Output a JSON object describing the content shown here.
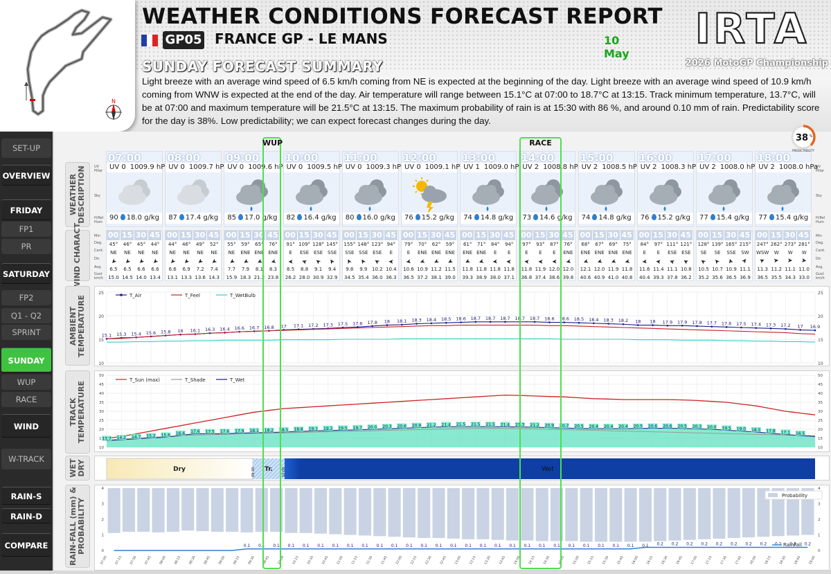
{
  "header": {
    "title": "WEATHER CONDITIONS FORECAST REPORT",
    "gp_code": "GP05",
    "gp_name": "FRANCE GP - LE MANS",
    "date": "10 May",
    "logo_text": "IRTA",
    "championship": "2026 MotoGP Championship",
    "summary_title": "SUNDAY FORECAST SUMMARY",
    "summary_text": "Light breeze with an average wind speed of 6.5 km/h coming from NE is expected at the beginning of the day. Light breeze with an average wind speed of 10.9 km/h coming from WNW is expected at the end of the day. Air temperature will range between 15.1°C at 07:00 to 18.7°C at 13:15. Track minimum temperature, 13.7°C, will be at 07:00 and maximum temperature will be 21.5°C at 13:15. The maximum probability of rain is at 15:30 with 86 %, and around 0.10 mm of rain. Predictability score for the day is 38%. Low predictability; we can expect forecast changes during the day.",
    "compass_label": "N"
  },
  "predictability": {
    "value": "38",
    "unit": "%",
    "label": "PREDICTABILITY",
    "fraction": 0.38
  },
  "sidebar": [
    {
      "label": "SET-UP",
      "kind": "sub"
    },
    {
      "label": "OVERVIEW",
      "kind": "main"
    },
    {
      "label": "FRIDAY",
      "kind": "main"
    },
    {
      "label": "FP1",
      "kind": "sub"
    },
    {
      "label": "PR",
      "kind": "sub"
    },
    {
      "label": "SATURDAY",
      "kind": "main"
    },
    {
      "label": "FP2",
      "kind": "sub"
    },
    {
      "label": "Q1 - Q2",
      "kind": "sub"
    },
    {
      "label": "SPRINT",
      "kind": "sub"
    },
    {
      "label": "SUNDAY",
      "kind": "active"
    },
    {
      "label": "WUP",
      "kind": "sub"
    },
    {
      "label": "RACE",
      "kind": "sub"
    },
    {
      "label": "WIND",
      "kind": "main"
    },
    {
      "label": "W-TRACK",
      "kind": "sub"
    },
    {
      "label": "RAIN-S",
      "kind": "main"
    },
    {
      "label": "RAIN-D",
      "kind": "main"
    },
    {
      "label": "COMPARE",
      "kind": "main"
    }
  ],
  "panels": {
    "weather": "WEATHER DESCRIPTION",
    "wind": "WIND CHARACT.",
    "ambient": "AMBIENT TEMPERATURE",
    "track": "TRACK TEMPERATURE",
    "wetdry": "WET DRY",
    "rain": "RAIN-FALL (mm) & PROBABILITY"
  },
  "row_labels": {
    "uv": "UV Pillar",
    "sky": "Sky",
    "hum": "H/Rel Hum",
    "min": "Min",
    "deg": "Deg.",
    "card": "Card.",
    "dir": "Dir.",
    "avg": "Avg.",
    "gust": "Gust km/h"
  },
  "sessions": [
    {
      "label": "WUP"
    },
    {
      "label": "RACE"
    }
  ],
  "hours": [
    {
      "time": "07:00",
      "uv": "UV 0",
      "pressure": "1009.9 hPa",
      "hum": "90",
      "abs": "18.0 g/kg",
      "icon": "cloud-icon"
    },
    {
      "time": "08:00",
      "uv": "UV 0",
      "pressure": "1009.7 hPa",
      "hum": "87",
      "abs": "17.4 g/kg",
      "icon": "cloud-icon"
    },
    {
      "time": "09:00",
      "uv": "UV 0",
      "pressure": "1009.6 hPa",
      "hum": "85",
      "abs": "17.0 g/kg",
      "icon": "rain-cloud-icon"
    },
    {
      "time": "10:00",
      "uv": "UV 0",
      "pressure": "1009.5 hPa",
      "hum": "82",
      "abs": "16.4 g/kg",
      "icon": "rain-cloud-icon"
    },
    {
      "time": "11:00",
      "uv": "UV 0",
      "pressure": "1009.3 hPa",
      "hum": "80",
      "abs": "16.0 g/kg",
      "icon": "rain-cloud-icon"
    },
    {
      "time": "12:00",
      "uv": "UV 0",
      "pressure": "1009.1 hPa",
      "hum": "76",
      "abs": "15.2 g/kg",
      "icon": "sun-storm-icon"
    },
    {
      "time": "13:00",
      "uv": "UV 1",
      "pressure": "1009.0 hPa",
      "hum": "74",
      "abs": "14.8 g/kg",
      "icon": "rain-cloud-icon"
    },
    {
      "time": "14:00",
      "uv": "UV 2",
      "pressure": "1008.8 hPa",
      "hum": "73",
      "abs": "14.6 g/kg",
      "icon": "rain-cloud-icon"
    },
    {
      "time": "15:00",
      "uv": "UV 2",
      "pressure": "1008.5 hPa",
      "hum": "74",
      "abs": "14.8 g/kg",
      "icon": "rain-cloud-icon"
    },
    {
      "time": "16:00",
      "uv": "UV 2",
      "pressure": "1008.3 hPa",
      "hum": "76",
      "abs": "15.2 g/kg",
      "icon": "rain-cloud-icon"
    },
    {
      "time": "17:00",
      "uv": "UV 2",
      "pressure": "1008.0 hPa",
      "hum": "77",
      "abs": "15.4 g/kg",
      "icon": "rain-cloud-icon"
    },
    {
      "time": "18:00",
      "uv": "UV 2",
      "pressure": "1008.0 hPa",
      "hum": "77",
      "abs": "15.4 g/kg",
      "icon": "rain-cloud-icon"
    }
  ],
  "wind_minutes": [
    "00",
    "15",
    "30",
    "45"
  ],
  "wind": {
    "deg": [
      "45°",
      "46°",
      "45°",
      "44°",
      "44°",
      "46°",
      "49°",
      "52°",
      "55°",
      "59°",
      "65°",
      "76°",
      "91°",
      "109°",
      "128°",
      "145°",
      "155°",
      "148°",
      "123°",
      "94°",
      "79°",
      "70°",
      "62°",
      "59°",
      "61°",
      "71°",
      "84°",
      "94°",
      "97°",
      "93°",
      "87°",
      "76°",
      "68°",
      "67°",
      "69°",
      "75°",
      "84°",
      "97°",
      "111°",
      "121°",
      "128°",
      "139°",
      "165°",
      "215°",
      "247°",
      "262°",
      "273°",
      "281°"
    ],
    "card": [
      "NE",
      "NE",
      "NE",
      "NE",
      "NE",
      "NE",
      "NE",
      "NE",
      "NE",
      "ENE",
      "ENE",
      "ENE",
      "E",
      "ESE",
      "ESE",
      "SSE",
      "SSE",
      "SSE",
      "ESE",
      "E",
      "E",
      "ENE",
      "ENE",
      "ENE",
      "ENE",
      "ENE",
      "E",
      "E",
      "E",
      "E",
      "E",
      "ENE",
      "ENE",
      "ENE",
      "ENE",
      "ENE",
      "E",
      "E",
      "ESE",
      "ESE",
      "SE",
      "SE",
      "SSE",
      "SW",
      "WSW",
      "W",
      "W",
      "W"
    ],
    "avg": [
      "6.5",
      "6.5",
      "6.6",
      "6.6",
      "6.6",
      "6.9",
      "7.2",
      "7.4",
      "7.7",
      "7.9",
      "8.1",
      "8.3",
      "8.5",
      "8.8",
      "9.1",
      "9.4",
      "9.8",
      "9.9",
      "10.2",
      "10.4",
      "10.6",
      "10.9",
      "11.2",
      "11.5",
      "11.8",
      "11.8",
      "11.8",
      "11.8",
      "11.8",
      "11.9",
      "12.0",
      "12.0",
      "12.1",
      "12.0",
      "11.9",
      "11.8",
      "11.6",
      "11.4",
      "11.1",
      "10.8",
      "10.5",
      "10.7",
      "10.9",
      "11.1",
      "11.3",
      "11.2",
      "11.1",
      "11.0"
    ],
    "gust": [
      "15.0",
      "14.5",
      "14.0",
      "13.4",
      "13.1",
      "13.3",
      "13.6",
      "14.3",
      "15.9",
      "18.3",
      "21.2",
      "23.8",
      "26.2",
      "28.0",
      "30.9",
      "32.9",
      "34.5",
      "35.4",
      "36.0",
      "36.3",
      "36.5",
      "37.2",
      "38.1",
      "39.0",
      "39.3",
      "38.9",
      "38.0",
      "37.1",
      "36.8",
      "37.4",
      "38.6",
      "39.8",
      "40.6",
      "40.9",
      "41.0",
      "40.8",
      "40.4",
      "39.3",
      "37.8",
      "36.2",
      "35.2",
      "35.6",
      "36.5",
      "36.9",
      "36.5",
      "35.5",
      "34.3",
      "33.0"
    ]
  },
  "x_ticks": [
    "07:00",
    "07:15",
    "07:30",
    "07:45",
    "08:00",
    "08:15",
    "08:30",
    "08:45",
    "09:00",
    "09:15",
    "09:30",
    "09:45",
    "10:00",
    "10:15",
    "10:30",
    "10:45",
    "11:00",
    "11:15",
    "11:30",
    "11:45",
    "12:00",
    "12:15",
    "12:30",
    "12:45",
    "13:00",
    "13:15",
    "13:30",
    "13:45",
    "14:00",
    "14:15",
    "14:30",
    "14:45",
    "15:00",
    "15:15",
    "15:30",
    "15:45",
    "16:00",
    "16:15",
    "16:30",
    "16:45",
    "17:00",
    "17:15",
    "17:30",
    "17:45",
    "18:00",
    "18:15",
    "18:30",
    "18:45",
    "19:00"
  ],
  "chart_data": [
    {
      "type": "line",
      "name": "ambient",
      "series": [
        {
          "name": "T_Air",
          "color": "#1a1a8c",
          "values": [
            15.1,
            15.3,
            15.4,
            15.6,
            15.8,
            16.0,
            16.1,
            16.3,
            16.4,
            16.6,
            16.7,
            16.8,
            17.0,
            17.1,
            17.2,
            17.3,
            17.5,
            17.6,
            17.8,
            18.0,
            18.1,
            18.3,
            18.4,
            18.5,
            18.6,
            18.7,
            18.7,
            18.7,
            18.7,
            18.7,
            18.6,
            18.6,
            18.5,
            18.4,
            18.3,
            18.2,
            18.0,
            18.0,
            17.9,
            17.9,
            17.8,
            17.7,
            17.6,
            17.5,
            17.4,
            17.3,
            17.2,
            17.0,
            16.9
          ]
        },
        {
          "name": "T_Feel",
          "color": "#c62020",
          "values": [
            15.1,
            15.2,
            15.4,
            15.6,
            15.8,
            16.0,
            16.1,
            16.3,
            16.4,
            16.6,
            16.7,
            16.8,
            16.9,
            17.0,
            17.1,
            17.2,
            17.3,
            17.4,
            17.5,
            17.6,
            17.7,
            17.8,
            17.9,
            17.9,
            18.0,
            18.0,
            18.0,
            18.0,
            18.0,
            18.0,
            17.9,
            17.9,
            17.8,
            17.7,
            17.6,
            17.5,
            17.4,
            17.3,
            17.2,
            17.1,
            17.0,
            16.9,
            16.8,
            16.7,
            16.6,
            16.5,
            16.4,
            16.2,
            16.1
          ]
        },
        {
          "name": "T_WetBulb",
          "color": "#33cccc",
          "values": [
            14.4,
            14.4,
            14.5,
            14.5,
            14.6,
            14.6,
            14.7,
            14.7,
            14.8,
            14.8,
            14.8,
            14.8,
            14.9,
            14.9,
            14.9,
            14.9,
            15.0,
            15.0,
            15.0,
            15.0,
            15.1,
            15.1,
            15.1,
            15.1,
            15.1,
            15.1,
            15.1,
            15.1,
            15.1,
            15.1,
            15.1,
            15.0,
            15.0,
            15.0,
            15.0,
            15.0,
            14.9,
            14.9,
            14.9,
            14.8,
            14.8,
            14.8,
            14.7,
            14.7,
            14.6,
            14.6,
            14.5,
            14.5,
            14.4
          ]
        }
      ],
      "ylim": [
        10,
        25
      ],
      "yticks": [
        10,
        15,
        20,
        25
      ],
      "legend": "top-left"
    },
    {
      "type": "line",
      "name": "track",
      "series": [
        {
          "name": "T_Sun (max)",
          "color": "#cc2222",
          "values": [
            15.0,
            16.0,
            17.5,
            19.0,
            20.5,
            22.0,
            23.5,
            25.0,
            26.5,
            28.0,
            29.5,
            30.5,
            31.5,
            32.0,
            32.5,
            33.0,
            33.5,
            34.0,
            34.5,
            35.0,
            35.5,
            36.0,
            36.5,
            37.0,
            37.5,
            38.0,
            38.5,
            39.0,
            38.8,
            38.5,
            38.2,
            38.0,
            37.5,
            37.0,
            36.8,
            36.5,
            36.5,
            36.5,
            36.5,
            36.3,
            36.0,
            35.5,
            35.0,
            34.0,
            33.0,
            31.5,
            30.0,
            29.0,
            28.0
          ]
        },
        {
          "name": "T_Shade",
          "color": "#999999",
          "values": [
            14.0,
            14.5,
            15.0,
            15.5,
            16.0,
            16.5,
            16.8,
            17.0,
            17.2,
            17.5,
            17.8,
            17.9,
            18.0,
            18.2,
            18.4,
            18.6,
            18.8,
            19.0,
            19.2,
            19.4,
            19.6,
            19.8,
            20.0,
            20.2,
            20.4,
            20.5,
            20.6,
            20.5,
            20.4,
            20.2,
            20.0,
            19.8,
            19.6,
            19.4,
            19.2,
            19.0,
            18.8,
            18.6,
            18.4,
            18.2,
            18.0,
            17.8,
            17.6,
            17.4,
            17.2,
            17.0,
            16.8,
            16.6,
            16.4
          ]
        },
        {
          "name": "T_Wet",
          "color": "#1a1a8c",
          "values": [
            13.7,
            14.2,
            14.7,
            15.2,
            15.6,
            16.6,
            17.6,
            17.5,
            17.6,
            17.9,
            18.1,
            18.2,
            18.5,
            18.8,
            19.1,
            19.3,
            19.5,
            19.7,
            20.0,
            20.3,
            20.6,
            20.9,
            21.2,
            21.4,
            21.5,
            21.5,
            21.5,
            21.4,
            21.3,
            21.2,
            20.9,
            20.7,
            20.5,
            20.4,
            20.4,
            20.4,
            20.5,
            20.6,
            20.6,
            20.5,
            20.3,
            20.0,
            19.5,
            19.0,
            18.5,
            17.8,
            17.1,
            16.5,
            16.0
          ]
        }
      ],
      "wet_labels": [
        "13.7",
        "14.2",
        "14.7",
        "15.2",
        "15.6",
        "16.6",
        "17.6",
        "17.5",
        "17.6",
        "17.9",
        "18.1",
        "18.2",
        "18.5",
        "18.8",
        "19.1",
        "19.3",
        "19.5",
        "19.7",
        "20.0",
        "20.3",
        "20.6",
        "20.9",
        "21.2",
        "21.4",
        "21.5",
        "21.5",
        "21.5",
        "21.4",
        "21.3",
        "21.2",
        "20.9",
        "20.7",
        "20.5",
        "20.4",
        "20.4",
        "20.4",
        "20.5",
        "20.6",
        "20.6",
        "20.5",
        "20.3",
        "20.0",
        "19.5",
        "19.0",
        "18.5",
        "17.8",
        "17.1",
        "16.5"
      ],
      "ylim": [
        10,
        50
      ],
      "yticks": [
        10,
        15,
        20,
        25,
        30,
        35,
        40,
        45,
        50
      ],
      "legend": "top-left"
    },
    {
      "type": "bar",
      "name": "rain",
      "series": [
        {
          "name": "Probability",
          "color": "#c9d3e3",
          "values": [
            72,
            70,
            70,
            71,
            70,
            68,
            69,
            70,
            70,
            71,
            70,
            70,
            72,
            72,
            73,
            74,
            75,
            76,
            77,
            78,
            79,
            80,
            80,
            81,
            82,
            82,
            83,
            84,
            84,
            85,
            85,
            85,
            86,
            86,
            86,
            86,
            86,
            85,
            84,
            83,
            82,
            81,
            80,
            79,
            78,
            77,
            76,
            75
          ]
        },
        {
          "name": "RainFall",
          "color": "#2b7fd6",
          "values": [
            0.0,
            0.0,
            0.0,
            0.0,
            0.0,
            0.0,
            0.0,
            0.0,
            0.0,
            0.1,
            0.1,
            0.1,
            0.1,
            0.1,
            0.1,
            0.1,
            0.1,
            0.1,
            0.1,
            0.1,
            0.1,
            0.1,
            0.1,
            0.1,
            0.1,
            0.1,
            0.1,
            0.1,
            0.1,
            0.1,
            0.1,
            0.1,
            0.1,
            0.1,
            0.1,
            0.1,
            0.2,
            0.2,
            0.2,
            0.2,
            0.2,
            0.2,
            0.2,
            0.2,
            0.2,
            0.2,
            0.2,
            0.2
          ]
        }
      ],
      "rain_labels": [
        "0.1",
        "0.1",
        "0.1",
        "0.1",
        "0.1",
        "0.1",
        "0.1",
        "0.1",
        "0.1",
        "0.1",
        "0.1",
        "0.1",
        "0.1",
        "0.1",
        "0.1",
        "0.1",
        "0.1",
        "0.1",
        "0.1",
        "0.1",
        "0.1",
        "0.1",
        "0.1",
        "0.1",
        "0.1",
        "0.1",
        "0.1",
        "0.1",
        "0.2",
        "0.2",
        "0.2",
        "0.2",
        "0.2",
        "0.2",
        "0.2",
        "0.2",
        "0.2",
        "0.2",
        "0.2"
      ],
      "ylim": [
        0,
        4
      ],
      "yticks": [
        0,
        1,
        2,
        3,
        4
      ]
    }
  ],
  "wetdry": {
    "dry": "Dry",
    "transition": "Tr.",
    "wet": "Wet",
    "t1": "09:30",
    "t2": "10:00"
  }
}
